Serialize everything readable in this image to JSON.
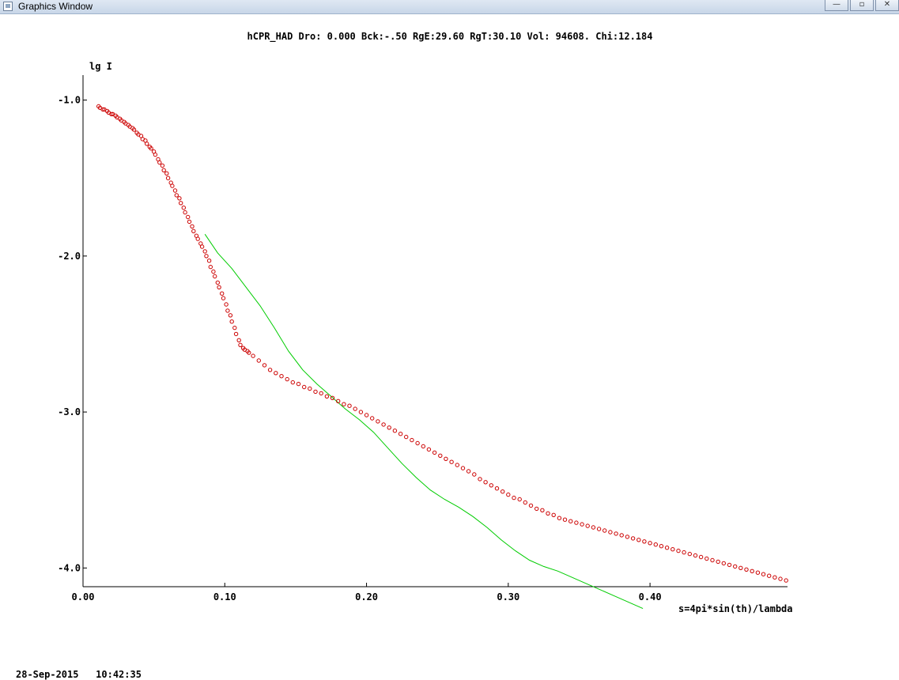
{
  "window": {
    "title": "Graphics Window",
    "buttons": {
      "minimize": "—",
      "maximize": "▫",
      "close": "✕"
    }
  },
  "footer_text": "28-Sep-2015   10:42:35",
  "chart_data": {
    "type": "scatter",
    "title": "hCPR_HAD  Dro: 0.000 Bck:-.50  RgE:29.60  RgT:30.10  Vol: 94608.  Chi:12.184",
    "ylabel": "lg I",
    "xlabel": "s=4pi*sin(th)/lambda",
    "xlim": [
      0.0,
      0.497
    ],
    "ylim": [
      -4.12,
      -0.84
    ],
    "x_ticks": [
      "0.00",
      "0.10",
      "0.20",
      "0.30",
      "0.40"
    ],
    "y_ticks": [
      "-1.0",
      "-2.0",
      "-3.0",
      "-4.0"
    ],
    "colors": {
      "experimental": "#cc0000",
      "model": "#00cc00",
      "axes": "#000000"
    },
    "series": [
      {
        "kind": "markers",
        "points": [
          [
            0.011,
            -1.04
          ],
          [
            0.012,
            -1.05
          ],
          [
            0.014,
            -1.06
          ],
          [
            0.015,
            -1.06
          ],
          [
            0.017,
            -1.07
          ],
          [
            0.018,
            -1.08
          ],
          [
            0.02,
            -1.09
          ],
          [
            0.021,
            -1.09
          ],
          [
            0.023,
            -1.1
          ],
          [
            0.024,
            -1.11
          ],
          [
            0.026,
            -1.12
          ],
          [
            0.027,
            -1.13
          ],
          [
            0.029,
            -1.14
          ],
          [
            0.03,
            -1.15
          ],
          [
            0.032,
            -1.16
          ],
          [
            0.033,
            -1.17
          ],
          [
            0.035,
            -1.18
          ],
          [
            0.036,
            -1.19
          ],
          [
            0.038,
            -1.21
          ],
          [
            0.039,
            -1.22
          ],
          [
            0.041,
            -1.23
          ],
          [
            0.042,
            -1.25
          ],
          [
            0.044,
            -1.26
          ],
          [
            0.045,
            -1.28
          ],
          [
            0.047,
            -1.3
          ],
          [
            0.048,
            -1.31
          ],
          [
            0.05,
            -1.33
          ],
          [
            0.051,
            -1.35
          ],
          [
            0.053,
            -1.38
          ],
          [
            0.054,
            -1.4
          ],
          [
            0.056,
            -1.42
          ],
          [
            0.057,
            -1.45
          ],
          [
            0.059,
            -1.47
          ],
          [
            0.06,
            -1.5
          ],
          [
            0.062,
            -1.53
          ],
          [
            0.063,
            -1.55
          ],
          [
            0.065,
            -1.58
          ],
          [
            0.066,
            -1.61
          ],
          [
            0.068,
            -1.63
          ],
          [
            0.069,
            -1.66
          ],
          [
            0.071,
            -1.69
          ],
          [
            0.072,
            -1.72
          ],
          [
            0.074,
            -1.75
          ],
          [
            0.075,
            -1.78
          ],
          [
            0.077,
            -1.81
          ],
          [
            0.078,
            -1.84
          ],
          [
            0.08,
            -1.87
          ],
          [
            0.081,
            -1.89
          ],
          [
            0.083,
            -1.92
          ],
          [
            0.084,
            -1.94
          ],
          [
            0.086,
            -1.97
          ],
          [
            0.087,
            -2.0
          ],
          [
            0.089,
            -2.03
          ],
          [
            0.09,
            -2.07
          ],
          [
            0.092,
            -2.1
          ],
          [
            0.093,
            -2.13
          ],
          [
            0.095,
            -2.17
          ],
          [
            0.096,
            -2.2
          ],
          [
            0.098,
            -2.24
          ],
          [
            0.099,
            -2.27
          ],
          [
            0.101,
            -2.31
          ],
          [
            0.102,
            -2.35
          ],
          [
            0.104,
            -2.38
          ],
          [
            0.105,
            -2.42
          ],
          [
            0.107,
            -2.46
          ],
          [
            0.108,
            -2.5
          ],
          [
            0.11,
            -2.54
          ],
          [
            0.111,
            -2.57
          ],
          [
            0.113,
            -2.59
          ],
          [
            0.114,
            -2.6
          ],
          [
            0.116,
            -2.61
          ],
          [
            0.117,
            -2.62
          ],
          [
            0.12,
            -2.64
          ],
          [
            0.124,
            -2.67
          ],
          [
            0.128,
            -2.7
          ],
          [
            0.132,
            -2.73
          ],
          [
            0.136,
            -2.75
          ],
          [
            0.14,
            -2.77
          ],
          [
            0.144,
            -2.79
          ],
          [
            0.148,
            -2.81
          ],
          [
            0.152,
            -2.82
          ],
          [
            0.156,
            -2.84
          ],
          [
            0.16,
            -2.85
          ],
          [
            0.164,
            -2.87
          ],
          [
            0.168,
            -2.88
          ],
          [
            0.172,
            -2.9
          ],
          [
            0.176,
            -2.91
          ],
          [
            0.18,
            -2.93
          ],
          [
            0.184,
            -2.95
          ],
          [
            0.188,
            -2.96
          ],
          [
            0.192,
            -2.98
          ],
          [
            0.196,
            -3.0
          ],
          [
            0.2,
            -3.02
          ],
          [
            0.204,
            -3.04
          ],
          [
            0.208,
            -3.06
          ],
          [
            0.212,
            -3.08
          ],
          [
            0.216,
            -3.1
          ],
          [
            0.22,
            -3.12
          ],
          [
            0.224,
            -3.14
          ],
          [
            0.228,
            -3.16
          ],
          [
            0.232,
            -3.18
          ],
          [
            0.236,
            -3.2
          ],
          [
            0.24,
            -3.22
          ],
          [
            0.244,
            -3.24
          ],
          [
            0.248,
            -3.26
          ],
          [
            0.252,
            -3.28
          ],
          [
            0.256,
            -3.3
          ],
          [
            0.26,
            -3.32
          ],
          [
            0.264,
            -3.34
          ],
          [
            0.268,
            -3.36
          ],
          [
            0.272,
            -3.38
          ],
          [
            0.276,
            -3.4
          ],
          [
            0.28,
            -3.43
          ],
          [
            0.284,
            -3.45
          ],
          [
            0.288,
            -3.47
          ],
          [
            0.292,
            -3.49
          ],
          [
            0.296,
            -3.51
          ],
          [
            0.3,
            -3.53
          ],
          [
            0.304,
            -3.55
          ],
          [
            0.308,
            -3.56
          ],
          [
            0.312,
            -3.58
          ],
          [
            0.316,
            -3.6
          ],
          [
            0.32,
            -3.62
          ],
          [
            0.324,
            -3.63
          ],
          [
            0.328,
            -3.65
          ],
          [
            0.332,
            -3.66
          ],
          [
            0.336,
            -3.68
          ],
          [
            0.34,
            -3.69
          ],
          [
            0.344,
            -3.7
          ],
          [
            0.348,
            -3.71
          ],
          [
            0.352,
            -3.72
          ],
          [
            0.356,
            -3.73
          ],
          [
            0.36,
            -3.74
          ],
          [
            0.364,
            -3.75
          ],
          [
            0.368,
            -3.76
          ],
          [
            0.372,
            -3.77
          ],
          [
            0.376,
            -3.78
          ],
          [
            0.38,
            -3.79
          ],
          [
            0.384,
            -3.8
          ],
          [
            0.388,
            -3.81
          ],
          [
            0.392,
            -3.82
          ],
          [
            0.396,
            -3.83
          ],
          [
            0.4,
            -3.84
          ],
          [
            0.404,
            -3.85
          ],
          [
            0.408,
            -3.86
          ],
          [
            0.412,
            -3.87
          ],
          [
            0.416,
            -3.88
          ],
          [
            0.42,
            -3.89
          ],
          [
            0.424,
            -3.9
          ],
          [
            0.428,
            -3.91
          ],
          [
            0.432,
            -3.92
          ],
          [
            0.436,
            -3.93
          ],
          [
            0.44,
            -3.94
          ],
          [
            0.444,
            -3.95
          ],
          [
            0.448,
            -3.96
          ],
          [
            0.452,
            -3.97
          ],
          [
            0.456,
            -3.98
          ],
          [
            0.46,
            -3.99
          ],
          [
            0.464,
            -4.0
          ],
          [
            0.468,
            -4.01
          ],
          [
            0.472,
            -4.02
          ],
          [
            0.476,
            -4.03
          ],
          [
            0.48,
            -4.04
          ],
          [
            0.484,
            -4.05
          ],
          [
            0.488,
            -4.06
          ],
          [
            0.492,
            -4.07
          ],
          [
            0.496,
            -4.08
          ]
        ]
      },
      {
        "kind": "line",
        "points": [
          [
            0.086,
            -1.86
          ],
          [
            0.095,
            -1.98
          ],
          [
            0.105,
            -2.08
          ],
          [
            0.115,
            -2.2
          ],
          [
            0.125,
            -2.32
          ],
          [
            0.135,
            -2.46
          ],
          [
            0.145,
            -2.61
          ],
          [
            0.155,
            -2.73
          ],
          [
            0.165,
            -2.82
          ],
          [
            0.175,
            -2.9
          ],
          [
            0.185,
            -2.98
          ],
          [
            0.195,
            -3.05
          ],
          [
            0.205,
            -3.13
          ],
          [
            0.215,
            -3.23
          ],
          [
            0.225,
            -3.33
          ],
          [
            0.235,
            -3.42
          ],
          [
            0.245,
            -3.5
          ],
          [
            0.255,
            -3.56
          ],
          [
            0.265,
            -3.61
          ],
          [
            0.275,
            -3.67
          ],
          [
            0.285,
            -3.74
          ],
          [
            0.295,
            -3.82
          ],
          [
            0.305,
            -3.89
          ],
          [
            0.315,
            -3.95
          ],
          [
            0.325,
            -3.99
          ],
          [
            0.335,
            -4.02
          ],
          [
            0.345,
            -4.06
          ],
          [
            0.355,
            -4.1
          ],
          [
            0.365,
            -4.14
          ],
          [
            0.375,
            -4.18
          ],
          [
            0.385,
            -4.22
          ],
          [
            0.395,
            -4.26
          ]
        ]
      }
    ]
  }
}
